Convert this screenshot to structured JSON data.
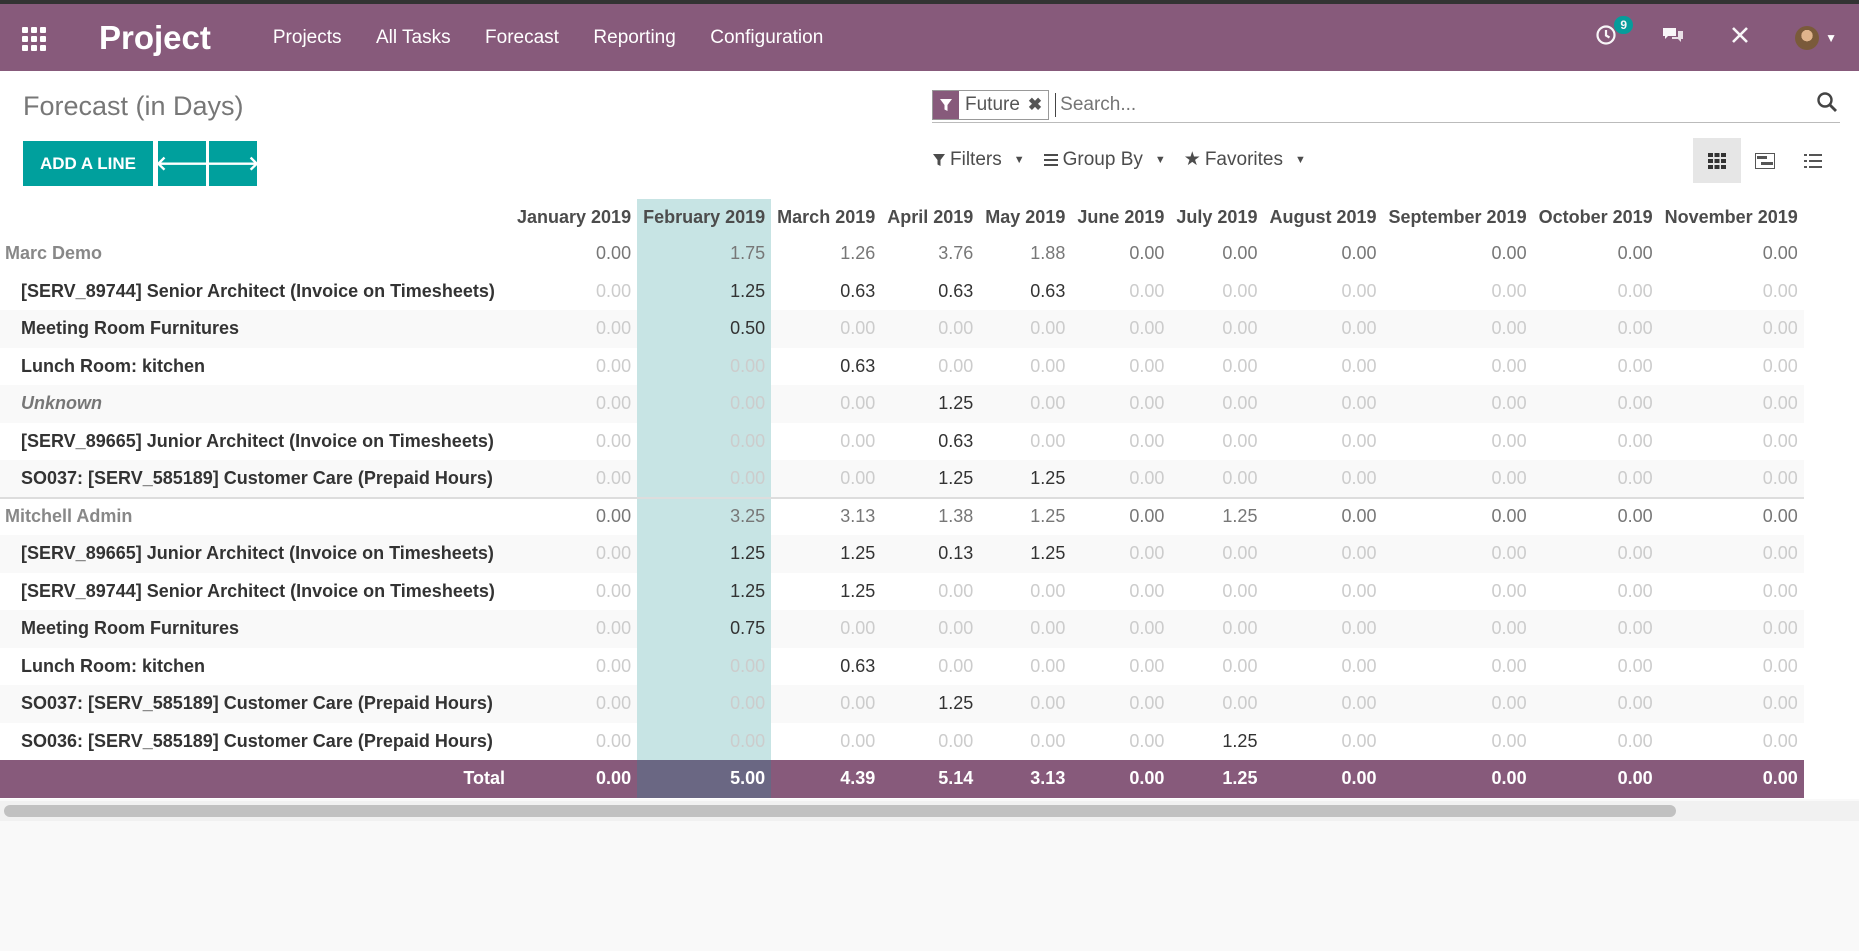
{
  "navbar": {
    "app_name": "Project",
    "menu": [
      "Projects",
      "All Tasks",
      "Forecast",
      "Reporting",
      "Configuration"
    ],
    "activity_count": "9"
  },
  "control": {
    "title": "Forecast (in Days)",
    "add_label": "ADD A LINE",
    "search": {
      "facet": "Future",
      "placeholder": "Search..."
    },
    "filters_label": "Filters",
    "groupby_label": "Group By",
    "favorites_label": "Favorites"
  },
  "grid": {
    "months": [
      "January 2019",
      "February 2019",
      "March 2019",
      "April 2019",
      "May 2019",
      "June 2019",
      "July 2019",
      "August 2019",
      "September 2019",
      "October 2019",
      "November 2019"
    ],
    "current_month_index": 1,
    "rows": [
      {
        "type": "group",
        "name": "Marc Demo",
        "values": [
          "0.00",
          "1.75",
          "1.26",
          "3.76",
          "1.88",
          "0.00",
          "0.00",
          "0.00",
          "0.00",
          "0.00",
          "0.00"
        ]
      },
      {
        "type": "row",
        "name": "[SERV_89744] Senior Architect (Invoice on Timesheets)",
        "values": [
          "0.00",
          "1.25",
          "0.63",
          "0.63",
          "0.63",
          "0.00",
          "0.00",
          "0.00",
          "0.00",
          "0.00",
          "0.00"
        ]
      },
      {
        "type": "row",
        "name": "Meeting Room Furnitures",
        "values": [
          "0.00",
          "0.50",
          "0.00",
          "0.00",
          "0.00",
          "0.00",
          "0.00",
          "0.00",
          "0.00",
          "0.00",
          "0.00"
        ]
      },
      {
        "type": "row",
        "name": "Lunch Room: kitchen",
        "values": [
          "0.00",
          "0.00",
          "0.63",
          "0.00",
          "0.00",
          "0.00",
          "0.00",
          "0.00",
          "0.00",
          "0.00",
          "0.00"
        ]
      },
      {
        "type": "row",
        "name": "Unknown",
        "italic": true,
        "values": [
          "0.00",
          "0.00",
          "0.00",
          "1.25",
          "0.00",
          "0.00",
          "0.00",
          "0.00",
          "0.00",
          "0.00",
          "0.00"
        ]
      },
      {
        "type": "row",
        "name": "[SERV_89665] Junior Architect (Invoice on Timesheets)",
        "values": [
          "0.00",
          "0.00",
          "0.00",
          "0.63",
          "0.00",
          "0.00",
          "0.00",
          "0.00",
          "0.00",
          "0.00",
          "0.00"
        ]
      },
      {
        "type": "row",
        "name": "SO037: [SERV_585189] Customer Care (Prepaid Hours)",
        "values": [
          "0.00",
          "0.00",
          "0.00",
          "1.25",
          "1.25",
          "0.00",
          "0.00",
          "0.00",
          "0.00",
          "0.00",
          "0.00"
        ]
      },
      {
        "type": "group",
        "name": "Mitchell Admin",
        "values": [
          "0.00",
          "3.25",
          "3.13",
          "1.38",
          "1.25",
          "0.00",
          "1.25",
          "0.00",
          "0.00",
          "0.00",
          "0.00"
        ]
      },
      {
        "type": "row",
        "name": "[SERV_89665] Junior Architect (Invoice on Timesheets)",
        "values": [
          "0.00",
          "1.25",
          "1.25",
          "0.13",
          "1.25",
          "0.00",
          "0.00",
          "0.00",
          "0.00",
          "0.00",
          "0.00"
        ]
      },
      {
        "type": "row",
        "name": "[SERV_89744] Senior Architect (Invoice on Timesheets)",
        "values": [
          "0.00",
          "1.25",
          "1.25",
          "0.00",
          "0.00",
          "0.00",
          "0.00",
          "0.00",
          "0.00",
          "0.00",
          "0.00"
        ]
      },
      {
        "type": "row",
        "name": "Meeting Room Furnitures",
        "values": [
          "0.00",
          "0.75",
          "0.00",
          "0.00",
          "0.00",
          "0.00",
          "0.00",
          "0.00",
          "0.00",
          "0.00",
          "0.00"
        ]
      },
      {
        "type": "row",
        "name": "Lunch Room: kitchen",
        "values": [
          "0.00",
          "0.00",
          "0.63",
          "0.00",
          "0.00",
          "0.00",
          "0.00",
          "0.00",
          "0.00",
          "0.00",
          "0.00"
        ]
      },
      {
        "type": "row",
        "name": "SO037: [SERV_585189] Customer Care (Prepaid Hours)",
        "values": [
          "0.00",
          "0.00",
          "0.00",
          "1.25",
          "0.00",
          "0.00",
          "0.00",
          "0.00",
          "0.00",
          "0.00",
          "0.00"
        ]
      },
      {
        "type": "row",
        "name": "SO036: [SERV_585189] Customer Care (Prepaid Hours)",
        "values": [
          "0.00",
          "0.00",
          "0.00",
          "0.00",
          "0.00",
          "0.00",
          "1.25",
          "0.00",
          "0.00",
          "0.00",
          "0.00"
        ]
      }
    ],
    "total": {
      "label": "Total",
      "values": [
        "0.00",
        "5.00",
        "4.39",
        "5.14",
        "3.13",
        "0.00",
        "1.25",
        "0.00",
        "0.00",
        "0.00",
        "0.00"
      ]
    }
  }
}
